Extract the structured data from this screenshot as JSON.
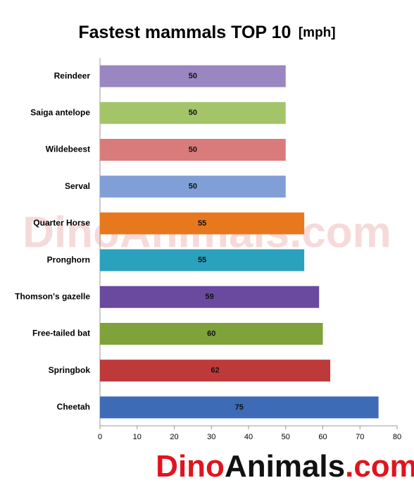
{
  "chart_data": {
    "type": "hbar",
    "title": "Fastest mammals TOP 10",
    "unit": "[mph]",
    "categories": [
      "Reindeer",
      "Saiga antelope",
      "Wildebeest",
      "Serval",
      "Quarter Horse",
      "Pronghorn",
      "Thomson's gazelle",
      "Free-tailed bat",
      "Springbok",
      "Cheetah"
    ],
    "values": [
      50,
      50,
      50,
      50,
      55,
      55,
      59,
      60,
      62,
      75
    ],
    "colors": [
      "#9a86c0",
      "#a4c46a",
      "#d97b7b",
      "#7f9fd6",
      "#e8781e",
      "#2aa1bd",
      "#6a4a9e",
      "#7fa23a",
      "#be3a3a",
      "#3d6bb5"
    ],
    "xlim": [
      0,
      80
    ],
    "xticks": [
      0,
      10,
      20,
      30,
      40,
      50,
      60,
      70,
      80
    ],
    "grid": false
  },
  "watermark": "DinoAnimals.com",
  "logo": [
    "Dino",
    "Animals",
    ".com"
  ]
}
